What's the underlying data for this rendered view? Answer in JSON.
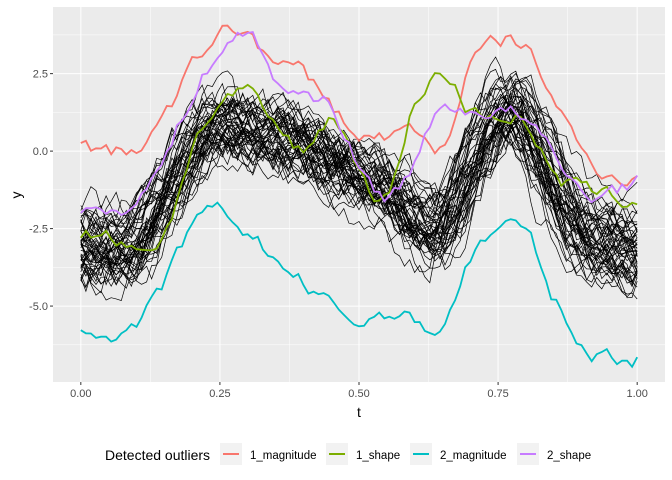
{
  "chart_data": {
    "type": "line",
    "title": "",
    "xlabel": "t",
    "ylabel": "y",
    "xlim": [
      -0.05,
      1.05
    ],
    "ylim": [
      -7.45,
      4.65
    ],
    "grid": true,
    "x_ticks": [
      "0.00",
      "0.25",
      "0.50",
      "0.75",
      "1.00"
    ],
    "x_tick_values": [
      0,
      0.25,
      0.5,
      0.75,
      1
    ],
    "y_ticks": [
      "2.5",
      "0.0",
      "-2.5",
      "-5.0"
    ],
    "y_tick_values": [
      2.5,
      0,
      -2.5,
      -5
    ],
    "legend": {
      "title": "Detected outliers",
      "placement": "bottom"
    },
    "t": [
      0,
      0.05,
      0.1,
      0.15,
      0.2,
      0.25,
      0.3,
      0.35,
      0.4,
      0.45,
      0.5,
      0.55,
      0.6,
      0.65,
      0.7,
      0.75,
      0.8,
      0.85,
      0.9,
      0.95,
      1.0
    ],
    "background_curves": {
      "count": 50,
      "color": "#000000",
      "mean": [
        -3.0,
        -3.1,
        -3.0,
        -1.5,
        0.0,
        0.9,
        0.7,
        0.5,
        0.2,
        -0.3,
        -0.8,
        -1.2,
        -2.2,
        -2.5,
        -0.5,
        1.2,
        1.0,
        -1.0,
        -2.5,
        -3.0,
        -3.2
      ],
      "spread": 1.0
    },
    "series": [
      {
        "name": "1_magnitude",
        "color": "#F8766D",
        "values": [
          0.25,
          -0.1,
          0.1,
          1.0,
          2.7,
          3.8,
          3.8,
          2.8,
          2.5,
          1.5,
          0.5,
          0.5,
          0.6,
          0.2,
          2.7,
          3.5,
          3.3,
          1.7,
          0.0,
          -0.7,
          -0.9
        ]
      },
      {
        "name": "1_shape",
        "color": "#7CAE00",
        "values": [
          -2.6,
          -2.8,
          -3.0,
          -2.7,
          0.1,
          1.5,
          1.8,
          0.8,
          0.0,
          1.1,
          -0.5,
          -1.5,
          1.5,
          2.5,
          1.3,
          1.2,
          0.9,
          -0.8,
          -1.2,
          -1.5,
          -1.6
        ]
      },
      {
        "name": "2_magnitude",
        "color": "#00BFC4",
        "values": [
          -5.7,
          -6.0,
          -5.6,
          -4.3,
          -2.5,
          -2.0,
          -2.6,
          -3.5,
          -4.3,
          -5.0,
          -5.5,
          -5.2,
          -5.5,
          -5.6,
          -3.5,
          -2.5,
          -2.7,
          -4.7,
          -6.3,
          -6.6,
          -6.7
        ]
      },
      {
        "name": "2_shape",
        "color": "#C77CFF",
        "values": [
          -1.9,
          -1.9,
          -1.5,
          -0.3,
          1.8,
          3.2,
          3.8,
          2.3,
          1.8,
          1.5,
          -0.5,
          -1.5,
          -0.3,
          1.4,
          1.3,
          1.3,
          1.0,
          -0.2,
          -1.3,
          -1.3,
          -1.0
        ]
      }
    ]
  }
}
